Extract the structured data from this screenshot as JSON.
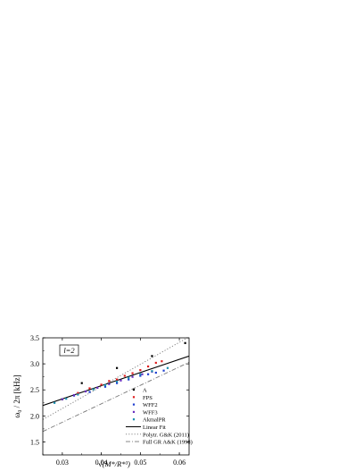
{
  "chart_data": {
    "type": "scatter",
    "title": "",
    "panel_label": "l=2",
    "xlabel": "√(M*/R*³)",
    "ylabel": "ω₀ / 2π  [kHz]",
    "xlim": [
      0.025,
      0.0625
    ],
    "ylim": [
      1.25,
      3.5
    ],
    "x_ticks": [
      0.03,
      0.04,
      0.05,
      0.06
    ],
    "x_tick_labels": [
      "0.03",
      "0.04",
      "0.05",
      "0.06"
    ],
    "y_ticks": [
      1.5,
      2.0,
      2.5,
      3.0,
      3.5
    ],
    "y_tick_labels": [
      "1.5",
      "2.0",
      "2.5",
      "3.0",
      "3.5"
    ],
    "grid": false,
    "legend_position": "bottom-right",
    "series": [
      {
        "name": "A",
        "kind": "points",
        "color": "#000000",
        "points": [
          [
            0.03,
            2.32
          ],
          [
            0.035,
            2.63
          ],
          [
            0.044,
            2.92
          ],
          [
            0.053,
            3.15
          ],
          [
            0.0615,
            3.4
          ]
        ]
      },
      {
        "name": "FPS",
        "kind": "points",
        "color": "#e02020",
        "points": [
          [
            0.034,
            2.44
          ],
          [
            0.037,
            2.53
          ],
          [
            0.04,
            2.6
          ],
          [
            0.042,
            2.67
          ],
          [
            0.044,
            2.7
          ],
          [
            0.046,
            2.77
          ],
          [
            0.048,
            2.82
          ],
          [
            0.05,
            2.88
          ],
          [
            0.052,
            2.95
          ],
          [
            0.054,
            3.02
          ],
          [
            0.0555,
            3.05
          ]
        ]
      },
      {
        "name": "WFF2",
        "kind": "points",
        "color": "#1f3fd0",
        "points": [
          [
            0.033,
            2.39
          ],
          [
            0.037,
            2.46
          ],
          [
            0.041,
            2.56
          ],
          [
            0.044,
            2.63
          ],
          [
            0.047,
            2.7
          ],
          [
            0.05,
            2.77
          ],
          [
            0.052,
            2.8
          ],
          [
            0.054,
            2.83
          ],
          [
            0.056,
            2.87
          ]
        ]
      },
      {
        "name": "WFF3",
        "kind": "points",
        "color": "#6a2fc0",
        "points": [
          [
            0.03,
            2.32
          ],
          [
            0.033,
            2.4
          ],
          [
            0.036,
            2.47
          ],
          [
            0.039,
            2.54
          ],
          [
            0.042,
            2.61
          ],
          [
            0.045,
            2.68
          ],
          [
            0.048,
            2.75
          ],
          [
            0.0505,
            2.8
          ],
          [
            0.053,
            2.85
          ]
        ]
      },
      {
        "name": "AkmalPR",
        "kind": "points",
        "color": "#1a8fb0",
        "points": [
          [
            0.028,
            2.25
          ],
          [
            0.031,
            2.33
          ],
          [
            0.034,
            2.41
          ],
          [
            0.038,
            2.51
          ],
          [
            0.041,
            2.59
          ],
          [
            0.044,
            2.66
          ],
          [
            0.047,
            2.73
          ],
          [
            0.05,
            2.8
          ],
          [
            0.053,
            2.86
          ],
          [
            0.057,
            2.92
          ]
        ]
      },
      {
        "name": "Linear Fit",
        "kind": "line",
        "color": "#000000",
        "dash": "solid",
        "points": [
          [
            0.025,
            2.2
          ],
          [
            0.0625,
            3.15
          ]
        ]
      },
      {
        "name": "Polytr. G&K (2011)",
        "kind": "line",
        "color": "#777777",
        "dash": "dotted",
        "points": [
          [
            0.025,
            1.93
          ],
          [
            0.0625,
            3.52
          ]
        ]
      },
      {
        "name": "Full GR A&K (1998)",
        "kind": "line",
        "color": "#777777",
        "dash": "dashdot",
        "points": [
          [
            0.025,
            1.7
          ],
          [
            0.0625,
            3.03
          ]
        ]
      }
    ]
  }
}
